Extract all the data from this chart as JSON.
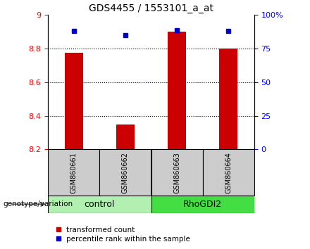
{
  "title": "GDS4455 / 1553101_a_at",
  "samples": [
    "GSM860661",
    "GSM860662",
    "GSM860663",
    "GSM860664"
  ],
  "group_labels": [
    "control",
    "RhoGDI2"
  ],
  "group_colors_light": "#b2f0b2",
  "group_colors_dark": "#44dd44",
  "bar_values": [
    8.775,
    8.35,
    8.9,
    8.8
  ],
  "bar_base": 8.2,
  "percentile_values": [
    8.905,
    8.88,
    8.91,
    8.905
  ],
  "ylim_left": [
    8.2,
    9.0
  ],
  "ylim_right": [
    0,
    100
  ],
  "yticks_left": [
    8.2,
    8.4,
    8.6,
    8.8,
    9.0
  ],
  "ytick_labels_left": [
    "8.2",
    "8.4",
    "8.6",
    "8.8",
    "9"
  ],
  "yticks_right": [
    0,
    25,
    50,
    75,
    100
  ],
  "ytick_labels_right": [
    "0",
    "25",
    "50",
    "75",
    "100%"
  ],
  "bar_color": "#CC0000",
  "dot_color": "#0000CC",
  "bar_width": 0.35,
  "legend_red": "transformed count",
  "legend_blue": "percentile rank within the sample",
  "grid_yticks": [
    8.4,
    8.6,
    8.8
  ],
  "x_positions": [
    1,
    2,
    3,
    4
  ],
  "xlim": [
    0.5,
    4.5
  ],
  "group_divider": 2.5,
  "sample_fontsize": 7,
  "title_fontsize": 10,
  "tick_fontsize": 8,
  "legend_fontsize": 7.5
}
